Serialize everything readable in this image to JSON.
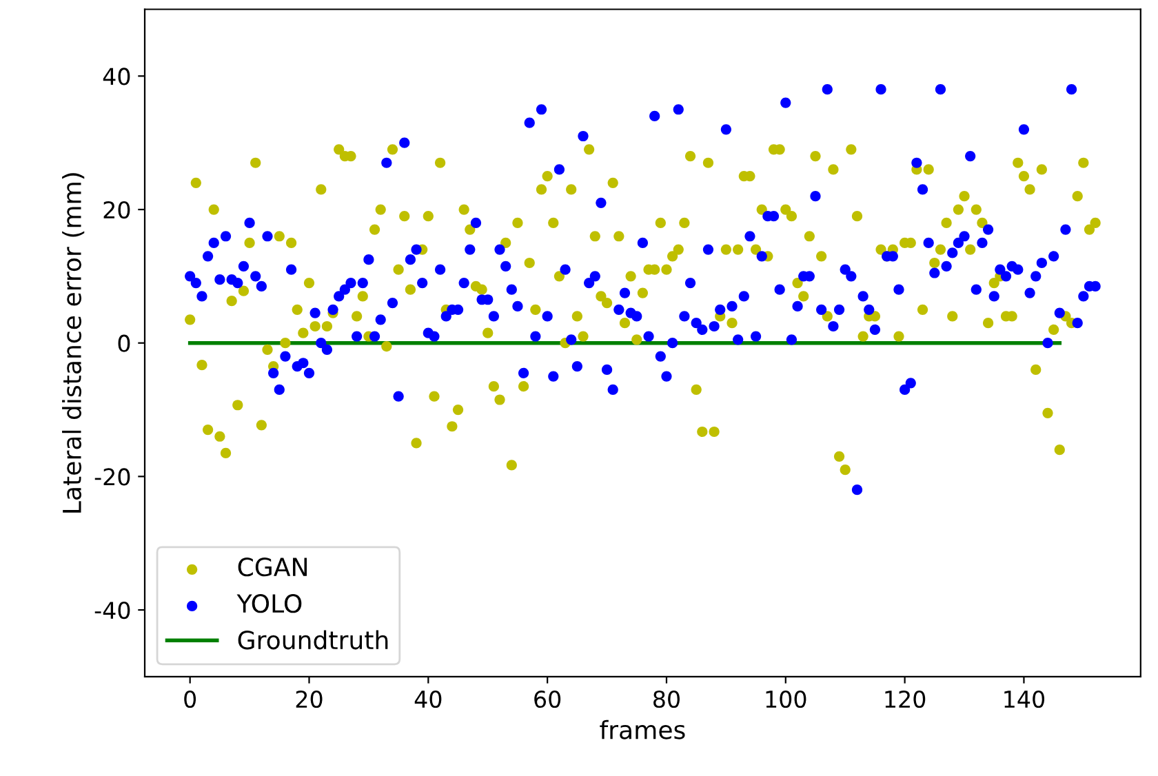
{
  "chart_data": {
    "type": "scatter",
    "xlabel": "frames",
    "ylabel": "Lateral distance error (mm)",
    "x": [
      0,
      1,
      2,
      3,
      4,
      5,
      6,
      7,
      8,
      9,
      10,
      11,
      12,
      13,
      14,
      15,
      16,
      17,
      18,
      19,
      20,
      21,
      22,
      23,
      24,
      25,
      26,
      27,
      28,
      29,
      30,
      31,
      32,
      33,
      34,
      35,
      36,
      37,
      38,
      39,
      40,
      41,
      42,
      43,
      44,
      45,
      46,
      47,
      48,
      49,
      50,
      51,
      52,
      53,
      54,
      55,
      56,
      57,
      58,
      59,
      60,
      61,
      62,
      63,
      64,
      65,
      66,
      67,
      68,
      69,
      70,
      71,
      72,
      73,
      74,
      75,
      76,
      77,
      78,
      79,
      80,
      81,
      82,
      83,
      84,
      85,
      86,
      87,
      88,
      89,
      90,
      91,
      92,
      93,
      94,
      95,
      96,
      97,
      98,
      99,
      100,
      101,
      102,
      103,
      104,
      105,
      106,
      107,
      108,
      109,
      110,
      111,
      112,
      113,
      114,
      115,
      116,
      117,
      118,
      119,
      120,
      121,
      122,
      123,
      124,
      125,
      126,
      127,
      128,
      129,
      130,
      131,
      132,
      133,
      134,
      135,
      136,
      137,
      138,
      139,
      140,
      141,
      142,
      143,
      144,
      145,
      146,
      147,
      148,
      149,
      150,
      151,
      152
    ],
    "series": [
      {
        "name": "CGAN",
        "color": "#bfbf00",
        "marker": "circle",
        "values": [
          3.5,
          24,
          -3.3,
          -13,
          20,
          -14,
          -16.5,
          6.3,
          -9.3,
          7.8,
          15,
          27,
          -12.3,
          -1,
          -3.5,
          16,
          0,
          15,
          5,
          1.5,
          9,
          2.5,
          23,
          2.5,
          4.5,
          29,
          28,
          28,
          4,
          7,
          1,
          17,
          20,
          -0.5,
          29,
          11,
          19,
          8,
          -15,
          14,
          19,
          -8,
          27,
          5,
          -12.5,
          -10,
          20,
          17,
          8.5,
          8,
          1.5,
          -6.5,
          -8.5,
          15,
          -18.3,
          18,
          -6.5,
          12,
          5,
          23,
          25,
          18,
          10,
          0,
          23,
          4,
          1,
          29,
          16,
          7,
          6,
          24,
          16,
          3,
          10,
          0.5,
          7.5,
          11,
          11,
          18,
          11,
          13,
          14,
          18,
          28,
          -7,
          -13.3,
          27,
          -13.3,
          4,
          14,
          3,
          14,
          25,
          25,
          14,
          20,
          13,
          29,
          29,
          20,
          19,
          9,
          7,
          16,
          28,
          13,
          4,
          26,
          -17,
          -19,
          29,
          19,
          1,
          4,
          4,
          14,
          13,
          14,
          1,
          15,
          15,
          26,
          5,
          26,
          12,
          14,
          18,
          4,
          20,
          22,
          14,
          20,
          18,
          3,
          9,
          10,
          4,
          4,
          27,
          25,
          23,
          -4,
          26,
          -10.5,
          2,
          -16,
          4,
          3,
          22,
          27,
          17,
          18
        ]
      },
      {
        "name": "YOLO",
        "color": "#0000ff",
        "marker": "circle",
        "values": [
          10,
          9,
          7,
          13,
          15,
          9.5,
          16,
          9.5,
          9,
          11.5,
          18,
          10,
          8.5,
          16,
          -4.5,
          -7,
          -2,
          11,
          -3.5,
          -3,
          -4.5,
          4.5,
          0,
          -1,
          5,
          7,
          8,
          9,
          1,
          9,
          12.5,
          1,
          3.5,
          27,
          6,
          -8,
          30,
          12.5,
          14,
          9,
          1.5,
          1,
          11,
          4,
          5,
          5,
          9,
          14,
          18,
          6.5,
          6.5,
          4,
          14,
          11.5,
          8,
          5.5,
          -4.5,
          33,
          1,
          35,
          4,
          -5,
          26,
          11,
          0.5,
          -3.5,
          31,
          9,
          10,
          21,
          -4,
          -7,
          5,
          7.5,
          4.5,
          4,
          15,
          1,
          34,
          -2,
          -5,
          0,
          35,
          4,
          9,
          3,
          2,
          14,
          2.5,
          5,
          32,
          5.5,
          0.5,
          7,
          16,
          1,
          13,
          19,
          19,
          8,
          36,
          0.5,
          5.5,
          10,
          10,
          22,
          5,
          38,
          2.5,
          5,
          11,
          10,
          -22,
          7,
          5,
          2,
          38,
          13,
          13,
          8,
          -7,
          -6,
          27,
          23,
          15,
          10.5,
          38,
          11.5,
          13.5,
          15,
          16,
          28,
          8,
          15,
          17,
          7,
          11,
          10,
          11.5,
          11,
          32,
          7.5,
          10,
          12,
          0,
          13,
          4.5,
          17,
          38,
          3,
          7,
          8.5,
          8.5
        ]
      },
      {
        "name": "Groundtruth",
        "type": "line",
        "marker": "none",
        "color": "#008000",
        "x": [
          0,
          146
        ],
        "values": [
          0,
          0
        ]
      }
    ],
    "xlim": [
      -7.6,
      159.6
    ],
    "ylim": [
      -50,
      50
    ],
    "xticks": [
      0,
      20,
      40,
      60,
      80,
      100,
      120,
      140
    ],
    "yticks": [
      -40,
      -20,
      0,
      20,
      40
    ],
    "grid": false,
    "legend": "bottom left"
  }
}
